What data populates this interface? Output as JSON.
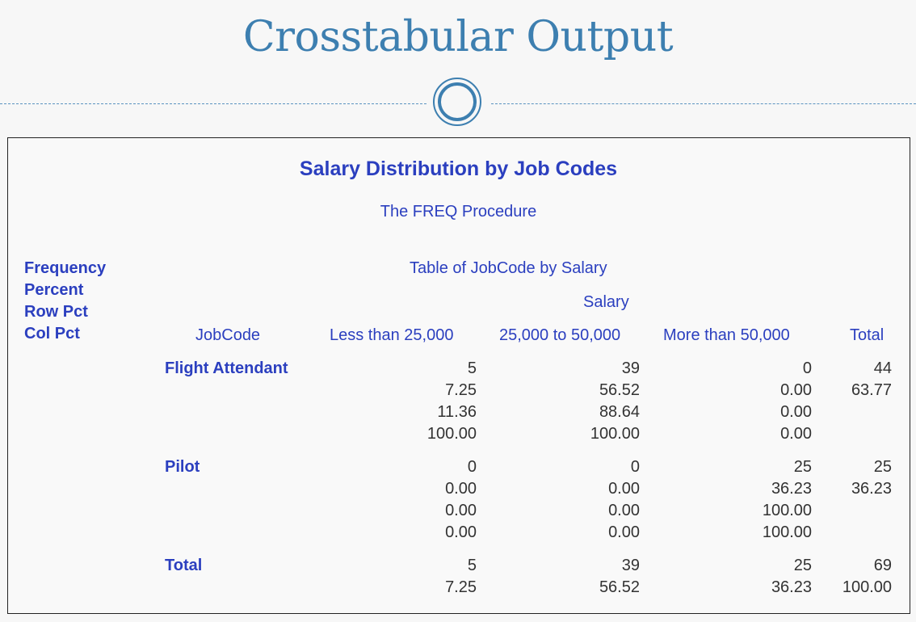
{
  "slide": {
    "title": "Crosstabular Output"
  },
  "output": {
    "report_title": "Salary Distribution by Job Codes",
    "procedure": "The FREQ Procedure",
    "legend": [
      "Frequency",
      "Percent",
      "Row Pct",
      "Col Pct"
    ],
    "table_title": "Table of JobCode by Salary",
    "column_variable": "Salary",
    "row_variable": "JobCode",
    "columns": [
      "Less than 25,000",
      "25,000 to 50,000",
      "More than 50,000",
      "Total"
    ],
    "rows": [
      {
        "label": "Flight Attendant",
        "cells": [
          [
            "5",
            "7.25",
            "11.36",
            "100.00"
          ],
          [
            "39",
            "56.52",
            "88.64",
            "100.00"
          ],
          [
            "0",
            "0.00",
            "0.00",
            "0.00"
          ],
          [
            "44",
            "63.77",
            "",
            ""
          ]
        ]
      },
      {
        "label": "Pilot",
        "cells": [
          [
            "0",
            "0.00",
            "0.00",
            "0.00"
          ],
          [
            "0",
            "0.00",
            "0.00",
            "0.00"
          ],
          [
            "25",
            "36.23",
            "100.00",
            "100.00"
          ],
          [
            "25",
            "36.23",
            "",
            ""
          ]
        ]
      },
      {
        "label": "Total",
        "cells": [
          [
            "5",
            "7.25",
            "",
            ""
          ],
          [
            "39",
            "56.52",
            "",
            ""
          ],
          [
            "25",
            "36.23",
            "",
            ""
          ],
          [
            "69",
            "100.00",
            "",
            ""
          ]
        ]
      }
    ]
  }
}
